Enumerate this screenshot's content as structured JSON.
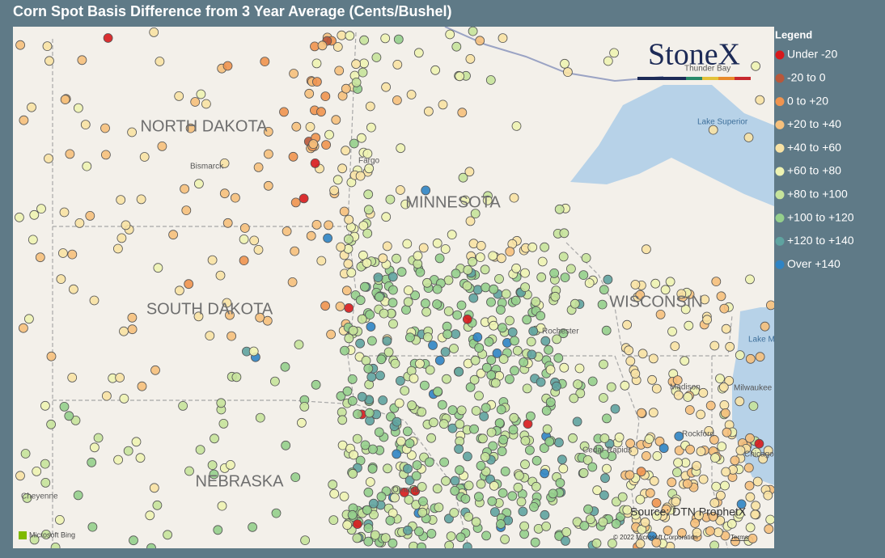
{
  "title": "Corn Spot Basis Difference from 3 Year Average (Cents/Bushel)",
  "legend": {
    "title": "Legend",
    "items": [
      {
        "label": "Under -20",
        "color": "#d7191c"
      },
      {
        "label": "-20 to 0",
        "color": "#b9573a"
      },
      {
        "label": "0 to +20",
        "color": "#f0944f"
      },
      {
        "label": "+20 to +40",
        "color": "#f6c07c"
      },
      {
        "label": "+40 to +60",
        "color": "#f8e2a4"
      },
      {
        "label": "+60 to +80",
        "color": "#eef3b2"
      },
      {
        "label": "+80 to +100",
        "color": "#c6e39b"
      },
      {
        "label": "+100 to +120",
        "color": "#95cf8c"
      },
      {
        "label": "+120 to +140",
        "color": "#5fa3a0"
      },
      {
        "label": "Over +140",
        "color": "#2f84c4"
      }
    ]
  },
  "map": {
    "logo": "StoneX",
    "states": [
      "NORTH DAKOTA",
      "MINNESOTA",
      "SOUTH DAKOTA",
      "WISCONSIN",
      "NEBRASKA"
    ],
    "cities": [
      "Bismarck",
      "Fargo",
      "Cheyenne",
      "Omaha",
      "Rochester",
      "Madison",
      "Milwaukee",
      "Rockford",
      "Cedar Rapids",
      "Chicago",
      "Thunder Bay"
    ],
    "water": [
      "Lake Superior",
      "Lake Michigan"
    ],
    "source": "Source: DTN ProphetX",
    "provider": "Microsoft Bing",
    "attribution": "© 2022 Microsoft Corporation",
    "terms": "Terms"
  }
}
